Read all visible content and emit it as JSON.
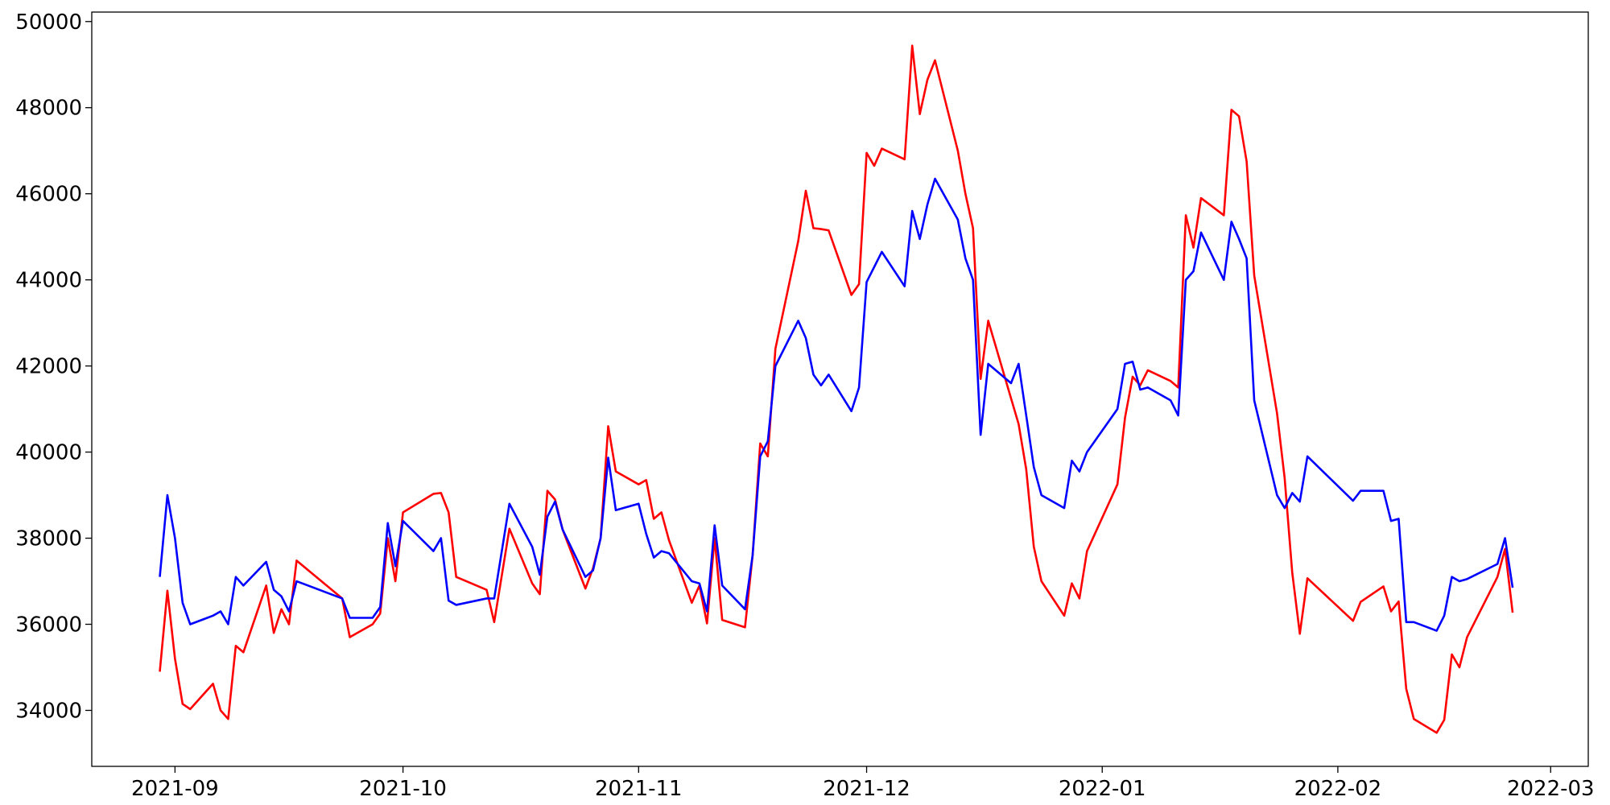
{
  "chart_data": {
    "type": "line",
    "x": [
      18869,
      18870,
      18871,
      18872,
      18873,
      18876,
      18877,
      18878,
      18879,
      18880,
      18883,
      18884,
      18885,
      18886,
      18887,
      18893,
      18894,
      18897,
      18898,
      18899,
      18900,
      18901,
      18905,
      18906,
      18907,
      18908,
      18912,
      18913,
      18915,
      18918,
      18919,
      18920,
      18921,
      18922,
      18925,
      18926,
      18927,
      18928,
      18929,
      18932,
      18933,
      18934,
      18935,
      18936,
      18939,
      18940,
      18941,
      18942,
      18943,
      18946,
      18947,
      18948,
      18949,
      18950,
      18953,
      18954,
      18955,
      18956,
      18957,
      18960,
      18961,
      18962,
      18963,
      18964,
      18967,
      18968,
      18969,
      18970,
      18971,
      18974,
      18975,
      18976,
      18977,
      18978,
      18981,
      18982,
      18983,
      18984,
      18985,
      18988,
      18989,
      18990,
      18991,
      18995,
      18996,
      18997,
      18998,
      18999,
      19002,
      19003,
      19004,
      19005,
      19006,
      19009,
      19010,
      19011,
      19012,
      19013,
      19016,
      19017,
      19018,
      19019,
      19020,
      19026,
      19027,
      19030,
      19031,
      19032,
      19033,
      19034,
      19037,
      19038,
      19039,
      19040,
      19041,
      19045,
      19046,
      19047
    ],
    "series": [
      {
        "color": "#ff0000",
        "values": [
          34900,
          36780,
          35200,
          34150,
          34030,
          34620,
          34000,
          33800,
          35500,
          35350,
          36900,
          35800,
          36350,
          36000,
          37480,
          36600,
          35700,
          36000,
          36250,
          38000,
          37000,
          38600,
          39030,
          39050,
          38600,
          37100,
          36800,
          36050,
          38220,
          36950,
          36700,
          39100,
          38900,
          38200,
          36830,
          37300,
          38000,
          40600,
          39550,
          39250,
          39350,
          38450,
          38600,
          37950,
          36500,
          36900,
          36020,
          38000,
          36100,
          35930,
          37600,
          40200,
          39900,
          42400,
          44900,
          46070,
          45200,
          45180,
          45150,
          43650,
          43900,
          46950,
          46650,
          47050,
          46800,
          49440,
          47850,
          48650,
          49100,
          47000,
          46000,
          45200,
          41700,
          43050,
          41250,
          40650,
          39600,
          37800,
          37000,
          36200,
          36950,
          36600,
          37700,
          39250,
          40800,
          41750,
          41550,
          41900,
          41650,
          41500,
          45500,
          44750,
          45900,
          45500,
          47950,
          47800,
          46750,
          44100,
          40900,
          39400,
          37200,
          35780,
          37070,
          36080,
          36520,
          36880,
          36300,
          36530,
          34500,
          33800,
          33480,
          33780,
          35300,
          35000,
          35700,
          37100,
          37750,
          36270
        ]
      },
      {
        "color": "#0000ff",
        "values": [
          37100,
          39000,
          38000,
          36500,
          36000,
          36200,
          36300,
          36000,
          37100,
          36900,
          37450,
          36800,
          36650,
          36300,
          37000,
          36600,
          36150,
          36150,
          36400,
          38350,
          37350,
          38400,
          37700,
          38000,
          36550,
          36450,
          36600,
          36600,
          38800,
          37800,
          37150,
          38500,
          38850,
          38200,
          37100,
          37250,
          38000,
          39870,
          38650,
          38800,
          38100,
          37550,
          37700,
          37650,
          37000,
          36950,
          36300,
          38300,
          36900,
          36350,
          37600,
          39900,
          40250,
          42000,
          43050,
          42650,
          41800,
          41550,
          41800,
          40950,
          41500,
          43950,
          44300,
          44650,
          43850,
          45600,
          44950,
          45750,
          46350,
          45400,
          44500,
          44000,
          40400,
          42050,
          41600,
          42050,
          40850,
          39650,
          39000,
          38700,
          39800,
          39550,
          40000,
          41000,
          42050,
          42100,
          41450,
          41500,
          41200,
          40850,
          44000,
          44200,
          45100,
          44000,
          45350,
          44950,
          44500,
          41200,
          39000,
          38700,
          39050,
          38850,
          39900,
          38870,
          39100,
          39100,
          38400,
          38450,
          36050,
          36050,
          35850,
          36200,
          37100,
          37000,
          37050,
          37400,
          38000,
          36850
        ]
      }
    ],
    "xlim": [
      18860.05,
      19056.95
    ],
    "xticks": [
      {
        "value": 18871,
        "label": "2021-09"
      },
      {
        "value": 18901,
        "label": "2021-10"
      },
      {
        "value": 18932,
        "label": "2021-11"
      },
      {
        "value": 18962,
        "label": "2021-12"
      },
      {
        "value": 18993,
        "label": "2022-01"
      },
      {
        "value": 19024,
        "label": "2022-02"
      },
      {
        "value": 19052,
        "label": "2022-03"
      }
    ],
    "ylim": [
      32700,
      50220
    ],
    "yticks": [
      34000,
      36000,
      38000,
      40000,
      42000,
      44000,
      46000,
      48000,
      50000
    ]
  }
}
